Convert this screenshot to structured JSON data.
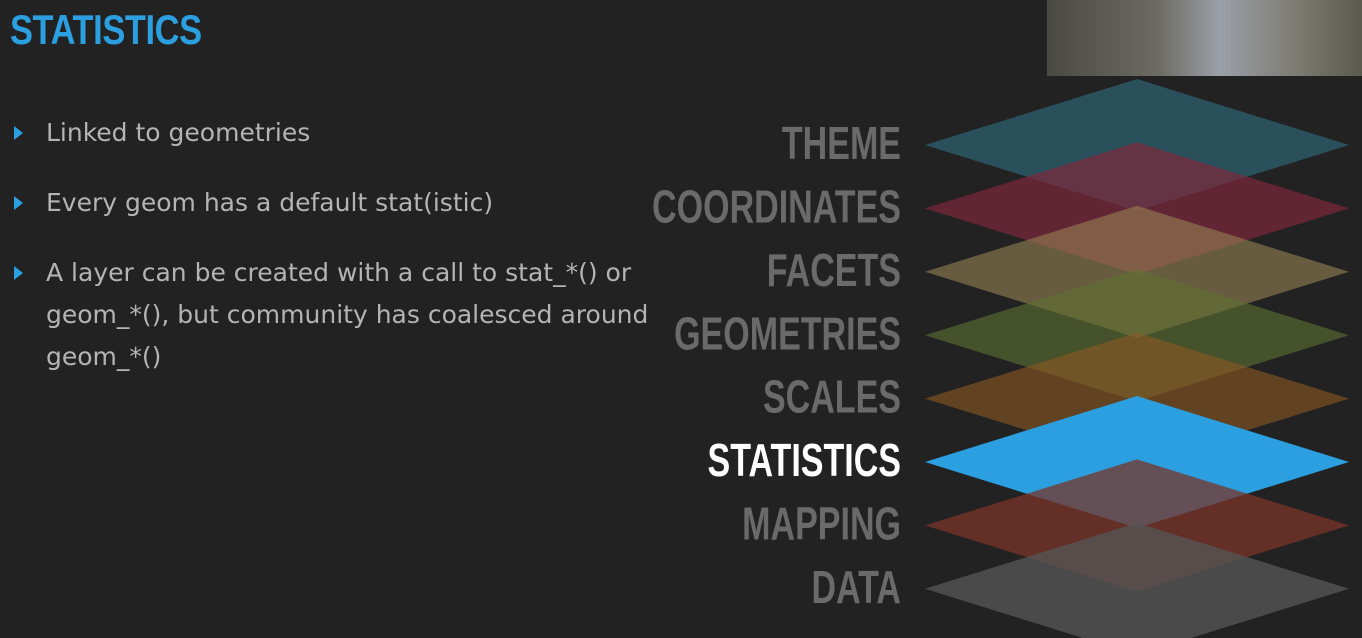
{
  "title": "STATISTICS",
  "bullets": [
    "Linked to geometries",
    "Every geom has a default stat(istic)",
    "A layer can be created with a call to stat_*() or geom_*(), but community has coalesced around geom_*()"
  ],
  "layers": [
    "THEME",
    "COORDINATES",
    "FACETS",
    "GEOMETRIES",
    "SCALES",
    "STATISTICS",
    "MAPPING",
    "DATA"
  ]
}
